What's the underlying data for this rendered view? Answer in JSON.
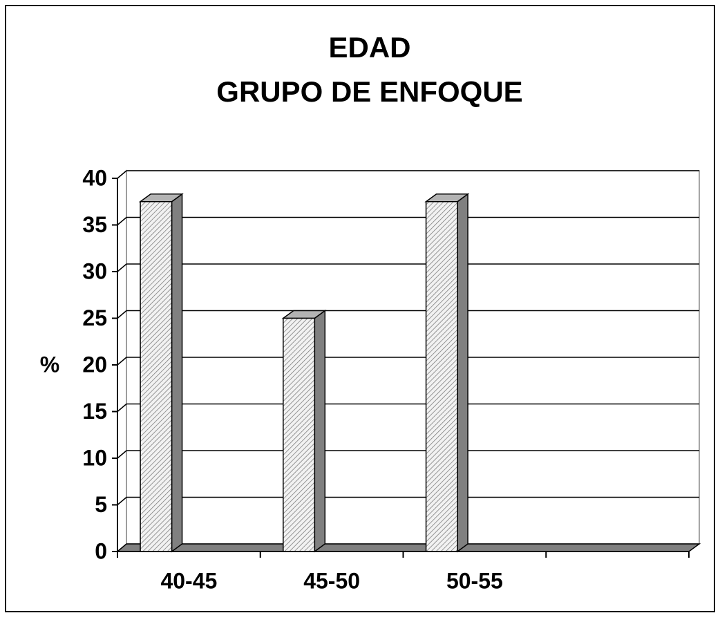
{
  "chart_data": {
    "type": "bar3d",
    "title": [
      "EDAD",
      "GRUPO DE ENFOQUE"
    ],
    "y_label": "%",
    "categories": [
      "40-45",
      "45-50",
      "50-55",
      null
    ],
    "values": [
      37.5,
      25,
      37.5,
      null
    ],
    "ylim": [
      0,
      40
    ],
    "yticks": [
      0,
      5,
      10,
      15,
      20,
      25,
      30,
      35,
      40
    ],
    "grid": true,
    "color": "#e6e6e6"
  }
}
